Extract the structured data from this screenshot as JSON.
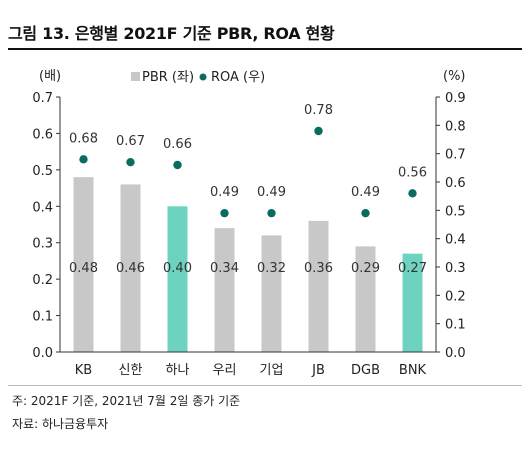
{
  "figure": {
    "title": "그림 13. 은행별 2021F 기준 PBR, ROA 현황",
    "note": "주: 2021F 기준, 2021년 7월 2일 종가 기준",
    "source": "자료: 하나금융투자"
  },
  "colors": {
    "bar_default": "#c8c8c8",
    "bar_highlight": "#6dd3c0",
    "roa_marker": "#0a6b60",
    "axis": "#333333"
  },
  "chart_data": {
    "type": "bar",
    "categories": [
      "KB",
      "신한",
      "하나",
      "우리",
      "기업",
      "JB",
      "DGB",
      "BNK"
    ],
    "highlight_categories": [
      "하나",
      "BNK"
    ],
    "series": [
      {
        "name": "PBR (좌)",
        "kind": "bar",
        "axis": "left",
        "values": [
          0.48,
          0.46,
          0.4,
          0.34,
          0.32,
          0.36,
          0.29,
          0.27
        ],
        "labels": [
          "0.48",
          "0.46",
          "0.40",
          "0.34",
          "0.32",
          "0.36",
          "0.29",
          "0.27"
        ]
      },
      {
        "name": "ROA (우)",
        "kind": "scatter",
        "axis": "right",
        "values": [
          0.68,
          0.67,
          0.66,
          0.49,
          0.49,
          0.78,
          0.49,
          0.56
        ],
        "labels": [
          "0.68",
          "0.67",
          "0.66",
          "0.49",
          "0.49",
          "0.78",
          "0.49",
          "0.56"
        ]
      }
    ],
    "ylabel_left": "(배)",
    "ylabel_right": "(%)",
    "ylim_left": [
      0,
      0.7
    ],
    "ylim_right": [
      0,
      0.9
    ],
    "yticks_left": [
      "0.0",
      "0.1",
      "0.2",
      "0.3",
      "0.4",
      "0.5",
      "0.6",
      "0.7"
    ],
    "yticks_right": [
      "0.0",
      "0.1",
      "0.2",
      "0.3",
      "0.4",
      "0.5",
      "0.6",
      "0.7",
      "0.8",
      "0.9"
    ],
    "legend_position": "top-center",
    "grid": false
  }
}
